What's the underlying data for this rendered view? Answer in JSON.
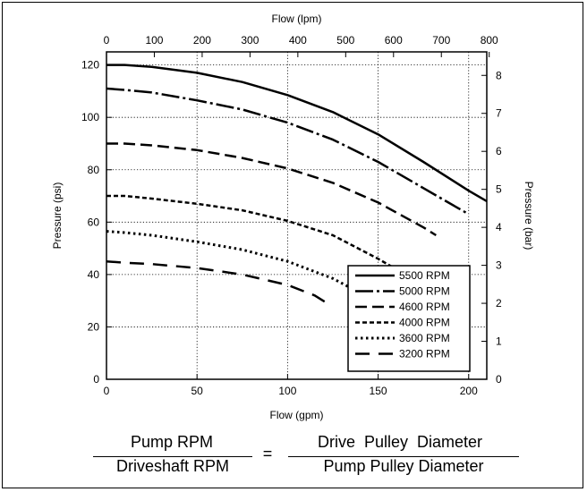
{
  "chart_data": {
    "type": "line",
    "title": "",
    "xlabel": "Flow (gpm)",
    "ylabel": "Pressure (psi)",
    "x2label": "Flow (lpm)",
    "y2label": "Pressure (bar)",
    "xlim": [
      0,
      210
    ],
    "ylim": [
      0,
      125
    ],
    "x_ticks": [
      "0",
      "50",
      "100",
      "150",
      "200"
    ],
    "y_ticks": [
      "0",
      "20",
      "40",
      "60",
      "80",
      "100",
      "120"
    ],
    "x2_ticks": [
      "0",
      "100",
      "200",
      "300",
      "400",
      "500",
      "600",
      "700",
      "800"
    ],
    "y2_ticks": [
      "0",
      "1",
      "2",
      "3",
      "4",
      "5",
      "6",
      "7",
      "8"
    ],
    "grid": true,
    "legend_position": "bottom-right",
    "series": [
      {
        "name": "5500 RPM",
        "dash": "solid",
        "x": [
          0,
          10,
          25,
          50,
          75,
          100,
          125,
          150,
          175,
          200,
          210
        ],
        "y": [
          120,
          120,
          119.3,
          117,
          113.5,
          108.5,
          102,
          93.5,
          83,
          72,
          68
        ]
      },
      {
        "name": "5000 RPM",
        "dash": "dashdot",
        "x": [
          0,
          10,
          25,
          50,
          75,
          100,
          125,
          150,
          175,
          200
        ],
        "y": [
          111,
          110.5,
          109.5,
          106.5,
          103,
          98,
          91.5,
          83,
          73,
          63
        ]
      },
      {
        "name": "4600 RPM",
        "dash": "longdash",
        "x": [
          0,
          10,
          25,
          50,
          75,
          100,
          125,
          150,
          175,
          182
        ],
        "y": [
          90,
          90,
          89.3,
          87.5,
          84.5,
          80.5,
          75,
          67.5,
          58,
          55
        ]
      },
      {
        "name": "4000 RPM",
        "dash": "dashed",
        "x": [
          0,
          10,
          25,
          50,
          75,
          100,
          125,
          150,
          160
        ],
        "y": [
          70,
          70,
          69,
          67,
          64.5,
          60.5,
          55,
          46,
          42
        ]
      },
      {
        "name": "3600 RPM",
        "dash": "dotted",
        "x": [
          0,
          10,
          25,
          50,
          75,
          100,
          125,
          140
        ],
        "y": [
          56.5,
          56,
          55,
          52.5,
          49.5,
          45,
          38.5,
          33
        ]
      },
      {
        "name": "3200 RPM",
        "dash": "sparse-long",
        "x": [
          0,
          10,
          25,
          50,
          75,
          100,
          115,
          122
        ],
        "y": [
          45,
          44.5,
          44,
          42.5,
          40,
          36,
          32,
          29
        ]
      }
    ]
  },
  "formula": {
    "numerator_left": "Pump RPM",
    "denominator_left": "Driveshaft RPM",
    "equals": "=",
    "numerator_right": "Drive  Pulley  Diameter",
    "denominator_right": "Pump Pulley Diameter"
  }
}
